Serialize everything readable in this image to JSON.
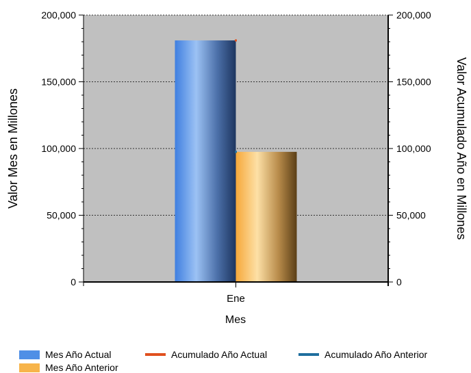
{
  "chart_data": {
    "type": "bar",
    "categories": [
      "Ene"
    ],
    "xlabel": "Mes",
    "ylabel": "Valor Mes en Millones",
    "y2label": "Valor Acumulado Año en Millones",
    "ylim": [
      0,
      200000
    ],
    "y2lim": [
      0,
      200000
    ],
    "yticks": [
      "0",
      "50,000",
      "100,000",
      "150,000",
      "200,000"
    ],
    "yticks_values": [
      0,
      50000,
      100000,
      150000,
      200000
    ],
    "y2ticks": [
      "0",
      "50,000",
      "100,000",
      "150,000",
      "200,000"
    ],
    "grid": true,
    "legend_position": "bottom",
    "series": [
      {
        "name": "Mes Año Actual",
        "kind": "bar",
        "values": [
          181000
        ],
        "color": "#4f8fe6"
      },
      {
        "name": "Mes Año Anterior",
        "kind": "bar",
        "values": [
          97500
        ],
        "color": "#f7b44a"
      },
      {
        "name": "Acumulado Año Actual",
        "kind": "line",
        "axis": "right",
        "values": [
          181000
        ],
        "color": "#e0501e"
      },
      {
        "name": "Acumulado Año Anterior",
        "kind": "line",
        "axis": "right",
        "values": [
          97500
        ],
        "color": "#1f6e9e"
      }
    ]
  },
  "legend": {
    "items": [
      {
        "label": "Mes Año Actual",
        "kind": "box",
        "color": "#4f8fe6"
      },
      {
        "label": "Acumulado Año Actual",
        "kind": "line",
        "color": "#e0501e"
      },
      {
        "label": "Acumulado Año Anterior",
        "kind": "line",
        "color": "#1f6e9e"
      },
      {
        "label": "Mes Año Anterior",
        "kind": "box",
        "color": "#f7b44a"
      }
    ]
  }
}
